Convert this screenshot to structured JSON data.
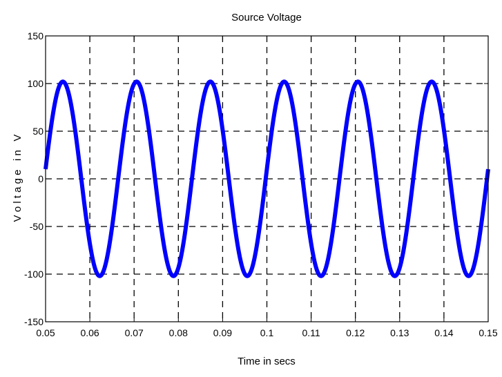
{
  "chart_data": {
    "type": "line",
    "title": "Source Voltage",
    "xlabel": "Time in secs",
    "ylabel": "V o l t a g e   i n   V",
    "xlim": [
      0.05,
      0.15
    ],
    "ylim": [
      -150,
      150
    ],
    "x_ticks": [
      0.05,
      0.06,
      0.07,
      0.08,
      0.09,
      0.1,
      0.11,
      0.12,
      0.13,
      0.14,
      0.15
    ],
    "x_tick_labels": [
      "0.05",
      "0.06",
      "0.07",
      "0.08",
      "0.09",
      "0.1",
      "0.11",
      "0.12",
      "0.13",
      "0.14",
      "0.15"
    ],
    "y_ticks": [
      -150,
      -100,
      -50,
      0,
      50,
      100,
      150
    ],
    "y_tick_labels": [
      "-150",
      "-100",
      "-50",
      "0",
      "50",
      "100",
      "150"
    ],
    "grid": true,
    "series": [
      {
        "color": "#0000ff",
        "waveform": "sine",
        "amplitude": 102,
        "frequency_hz": 60,
        "x_start": 0.05,
        "x_end": 0.15,
        "phase_rad": 0.1
      }
    ]
  }
}
